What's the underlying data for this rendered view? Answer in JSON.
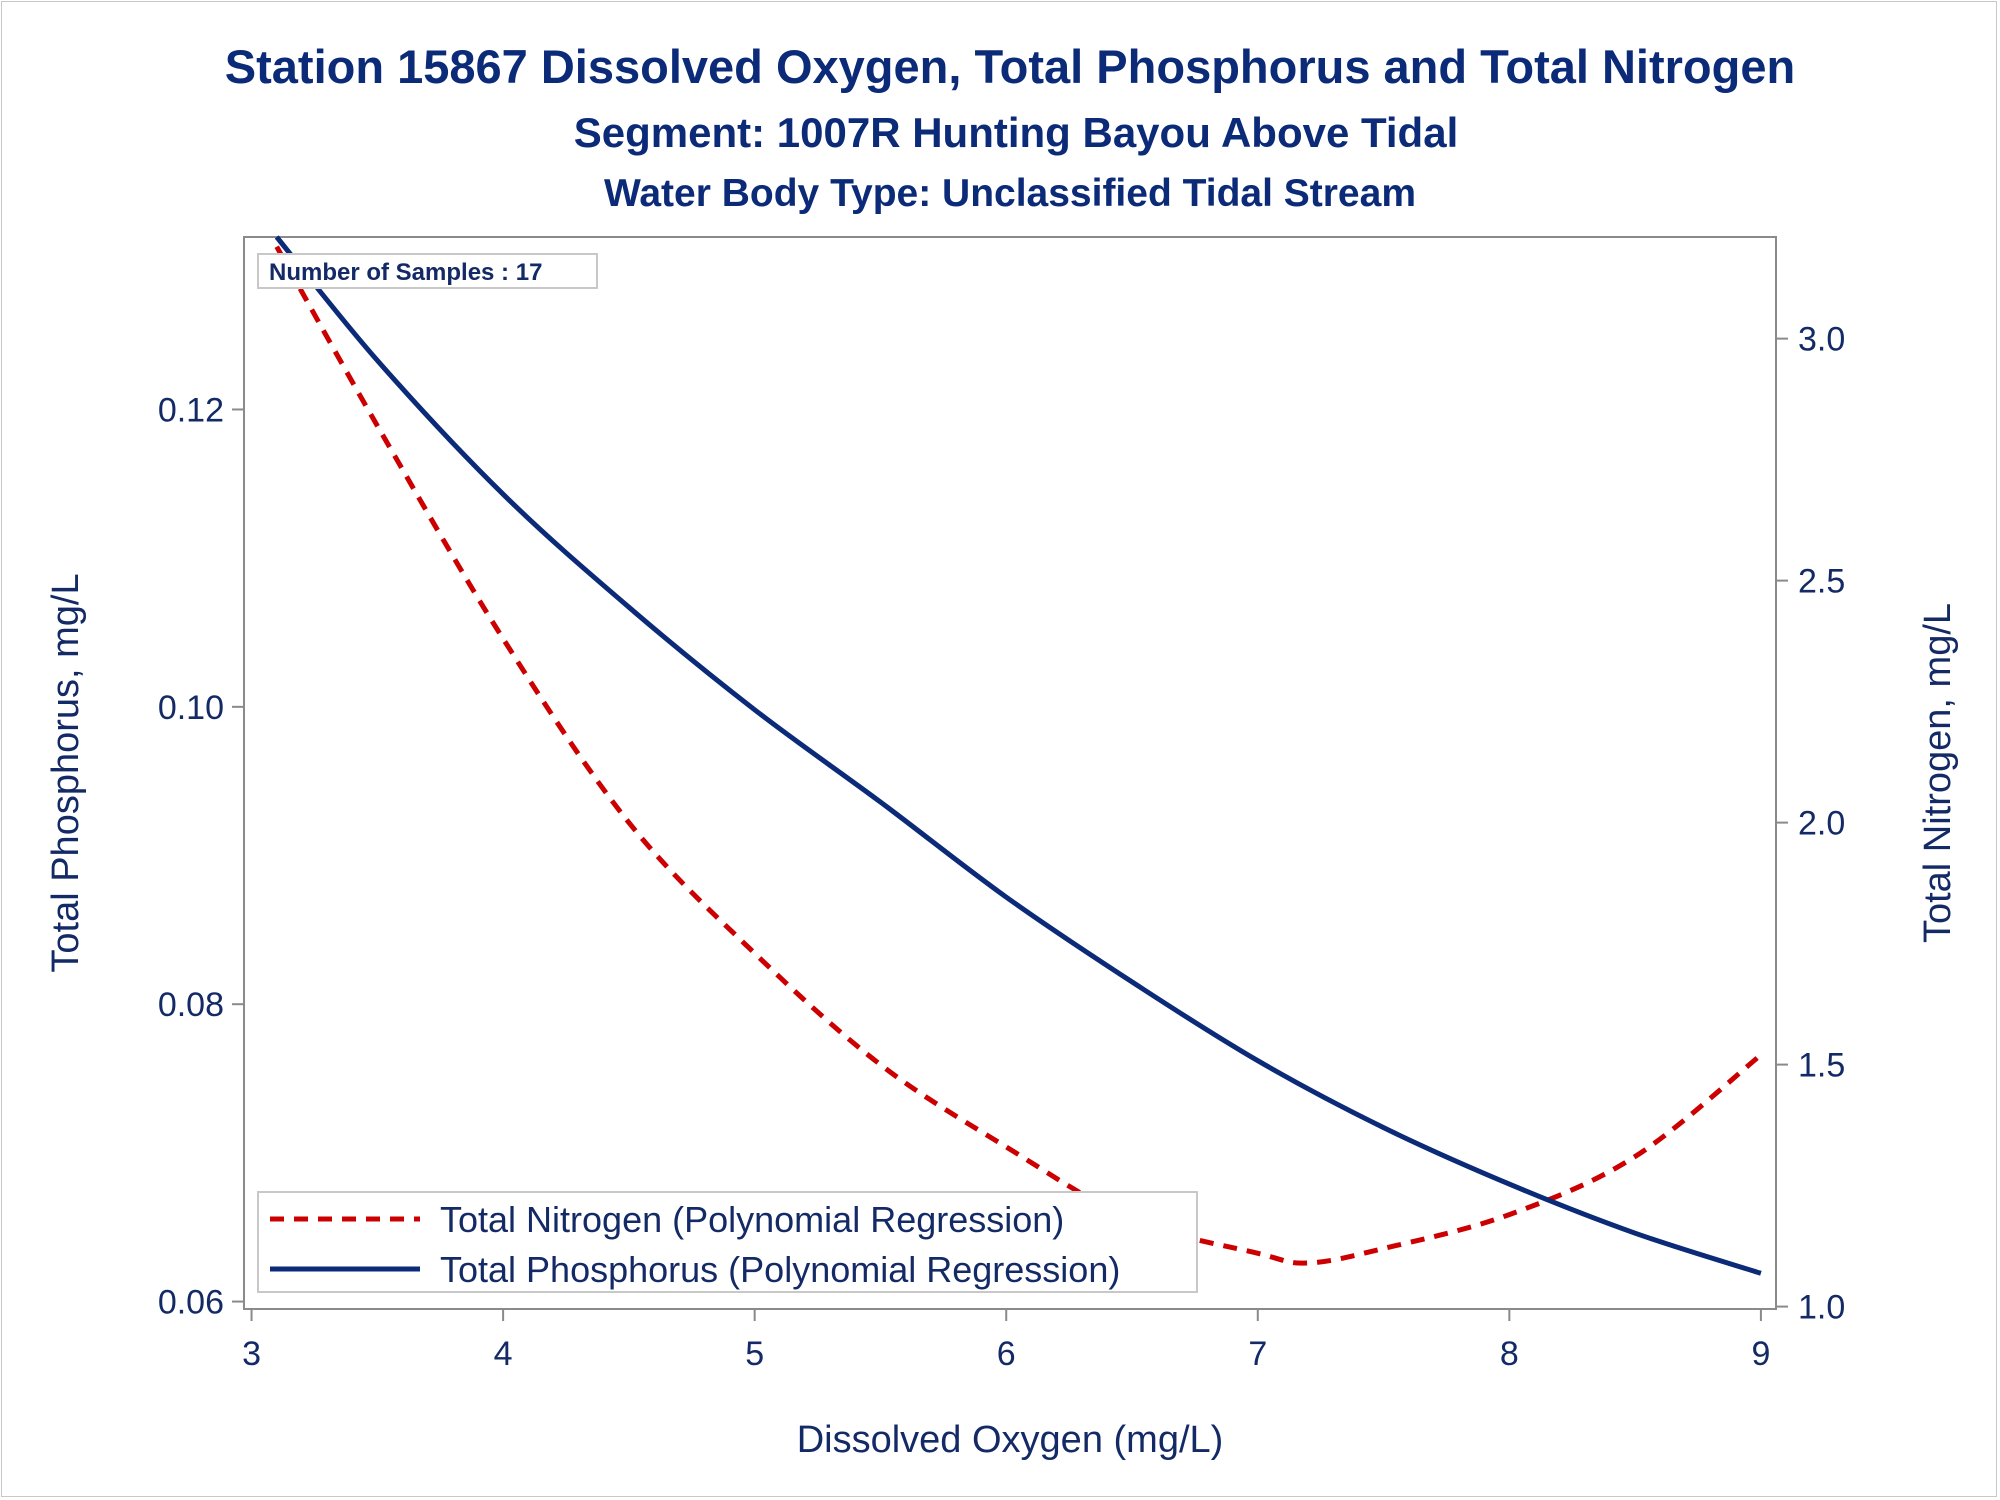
{
  "chart_data": {
    "type": "line",
    "title": "Station 15867  Dissolved Oxygen, Total Phosphorus and Total Nitrogen",
    "subtitle": "Segment: 1007R  Hunting Bayou Above Tidal",
    "subtitle2": "Water Body Type: Unclassified Tidal Stream",
    "xlabel": "Dissolved Oxygen (mg/L)",
    "ylabel_left": "Total Phosphorus, mg/L",
    "ylabel_right": "Total Nitrogen, mg/L",
    "xlim": [
      2.97,
      9.06
    ],
    "ylim_left": [
      0.0595,
      0.1316
    ],
    "ylim_right": [
      0.995,
      3.21
    ],
    "x_ticks": [
      "3",
      "4",
      "5",
      "6",
      "7",
      "8",
      "9"
    ],
    "y_left_ticks": [
      "0.06",
      "0.08",
      "0.10",
      "0.12"
    ],
    "y_right_ticks": [
      "1.0",
      "1.5",
      "2.0",
      "2.5",
      "3.0"
    ],
    "annotation": "Number of Samples : 17",
    "legend_position": "bottom-left inside",
    "grid": false,
    "series": [
      {
        "name": "Total Nitrogen (Polynomial Regression)",
        "axis": "right",
        "style": "dashed",
        "color": "#cc0000",
        "x": [
          3.1,
          3.5,
          4.0,
          4.5,
          5.0,
          5.5,
          6.0,
          6.5,
          7.0,
          7.2,
          7.5,
          8.0,
          8.5,
          9.0
        ],
        "y": [
          3.19,
          2.82,
          2.38,
          2.0,
          1.73,
          1.5,
          1.33,
          1.18,
          1.11,
          1.09,
          1.12,
          1.19,
          1.31,
          1.52
        ]
      },
      {
        "name": "Total Phosphorus (Polynomial Regression)",
        "axis": "left",
        "style": "solid",
        "color": "#0b2a78",
        "x": [
          3.1,
          3.5,
          4.0,
          4.5,
          5.0,
          5.5,
          6.0,
          6.5,
          7.0,
          7.5,
          8.0,
          8.5,
          9.0
        ],
        "y": [
          0.1316,
          0.1233,
          0.1143,
          0.1067,
          0.0998,
          0.0936,
          0.0872,
          0.0815,
          0.0762,
          0.0717,
          0.0679,
          0.0646,
          0.0619
        ]
      }
    ]
  }
}
